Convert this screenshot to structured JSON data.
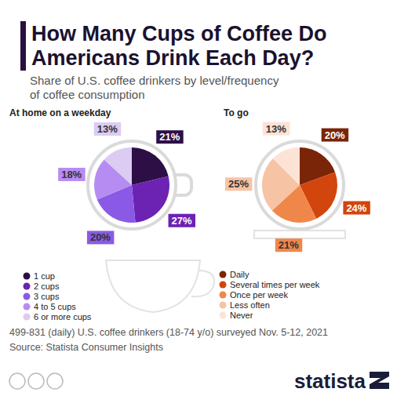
{
  "title": "How Many Cups of Coffee Do Americans Drink Each Day?",
  "subtitle": "Share of U.S. coffee drinkers by level/frequency of coffee consumption",
  "note": "499-831 (daily) U.S. coffee drinkers (18-74 y/o) surveyed Nov. 5-12, 2021",
  "source": "Source: Statista Consumer Insights",
  "logo": "statista",
  "chart_data": [
    {
      "type": "pie",
      "title": "At home on a weekday",
      "categories": [
        "1 cup",
        "2 cups",
        "3 cups",
        "4 to 5 cups",
        "6 or more cups"
      ],
      "values": [
        21,
        27,
        20,
        18,
        13
      ],
      "value_labels": [
        "21%",
        "27%",
        "20%",
        "18%",
        "13%"
      ],
      "colors": [
        "#2d0f46",
        "#6c22b3",
        "#8a5ae6",
        "#b78cf2",
        "#dccbf2"
      ],
      "data_labels": true,
      "legend": "bottom"
    },
    {
      "type": "pie",
      "title": "To go",
      "categories": [
        "Daily",
        "Several times per week",
        "Once per week",
        "Less often",
        "Never"
      ],
      "values": [
        20,
        24,
        21,
        25,
        13
      ],
      "value_labels": [
        "20%",
        "24%",
        "21%",
        "25%",
        "13%"
      ],
      "colors": [
        "#7a2508",
        "#d2450c",
        "#f0874a",
        "#f7c3a5",
        "#fde3d6"
      ],
      "data_labels": true,
      "legend": "bottom"
    }
  ]
}
